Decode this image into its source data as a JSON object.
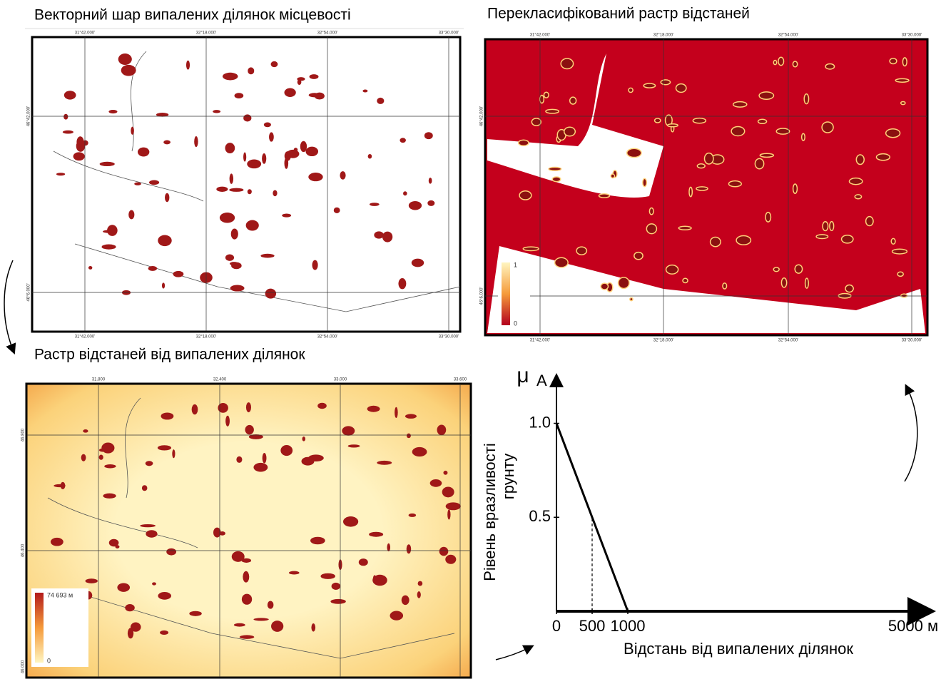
{
  "maps": [
    {
      "title": "Векторний шар випалених ділянок місцевості",
      "lon_labels": [
        "31°42.000'",
        "32°18.000'",
        "32°54.000'",
        "33°30.000'"
      ],
      "lat_labels": [
        "46°42.000'",
        "46°6.000'"
      ]
    },
    {
      "title": "Перекласифікований растр відстаней",
      "lon_labels": [
        "31°42.000'",
        "32°18.000'",
        "32°54.000'",
        "33°30.000'"
      ],
      "lat_labels": [
        "46°42.000'",
        "46°6.000'"
      ],
      "legend": [
        "1",
        "0"
      ]
    },
    {
      "title": "Растр відстаней від випалених ділянок",
      "lon_labels": [
        "31.800",
        "32.400",
        "33.000",
        "33.600"
      ],
      "lat_labels": [
        "46.800",
        "46.400",
        "46.000"
      ],
      "legend": [
        "74 693 м",
        "0"
      ]
    }
  ],
  "chart_data": {
    "type": "line",
    "y_symbol": "μ",
    "y_subscript": "A",
    "y_label": [
      "Рівень вразливості",
      "грунту"
    ],
    "x_label": "Відстань від випалених ділянок",
    "x": [
      0,
      1000,
      5000
    ],
    "values": [
      1,
      0,
      0
    ],
    "color": "#000000",
    "xlim": [
      0,
      5200
    ],
    "ylim": [
      0,
      1.26
    ],
    "xticks": [
      0,
      500,
      1000,
      {
        "value": 5000,
        "label": "5000 м"
      }
    ],
    "yticks": [
      0.5,
      {
        "value": 1,
        "label": "1.0"
      }
    ]
  }
}
